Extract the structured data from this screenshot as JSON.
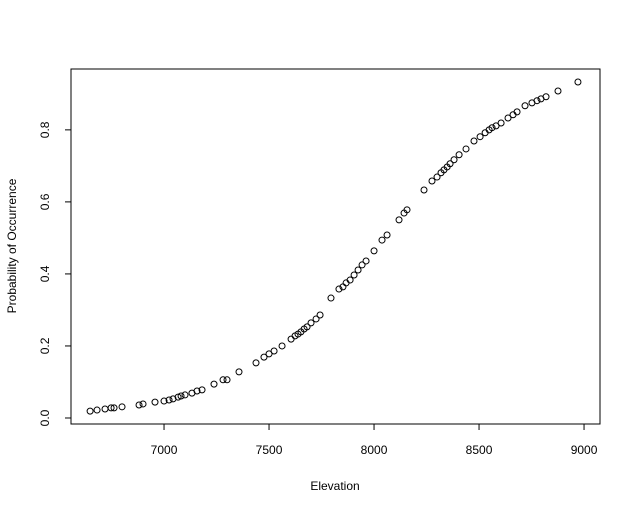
{
  "chart_data": {
    "type": "scatter",
    "x_label": "Elevation",
    "y_label": "Probability of Occurrence",
    "color": "#000000",
    "x": [
      6648,
      6681,
      6719,
      6748,
      6762,
      6800,
      6881,
      6900,
      6957,
      7000,
      7024,
      7043,
      7067,
      7081,
      7100,
      7133,
      7157,
      7181,
      7238,
      7281,
      7300,
      7357,
      7438,
      7476,
      7500,
      7524,
      7562,
      7605,
      7624,
      7638,
      7652,
      7667,
      7681,
      7700,
      7724,
      7743,
      7795,
      7833,
      7852,
      7867,
      7886,
      7905,
      7924,
      7943,
      7962,
      8000,
      8038,
      8062,
      8119,
      8143,
      8157,
      8238,
      8276,
      8300,
      8319,
      8333,
      8348,
      8362,
      8381,
      8405,
      8438,
      8476,
      8505,
      8529,
      8548,
      8562,
      8581,
      8605,
      8638,
      8662,
      8681,
      8719,
      8752,
      8776,
      8795,
      8819,
      8876,
      8971
    ],
    "values": [
      0.019,
      0.022,
      0.025,
      0.028,
      0.028,
      0.031,
      0.036,
      0.039,
      0.044,
      0.047,
      0.05,
      0.053,
      0.058,
      0.061,
      0.064,
      0.069,
      0.075,
      0.078,
      0.094,
      0.106,
      0.106,
      0.128,
      0.153,
      0.169,
      0.178,
      0.186,
      0.2,
      0.219,
      0.228,
      0.233,
      0.239,
      0.247,
      0.253,
      0.264,
      0.275,
      0.286,
      0.333,
      0.358,
      0.364,
      0.375,
      0.383,
      0.397,
      0.411,
      0.425,
      0.436,
      0.464,
      0.494,
      0.508,
      0.55,
      0.569,
      0.578,
      0.633,
      0.658,
      0.669,
      0.681,
      0.689,
      0.697,
      0.706,
      0.717,
      0.731,
      0.747,
      0.769,
      0.781,
      0.792,
      0.8,
      0.806,
      0.811,
      0.819,
      0.833,
      0.842,
      0.85,
      0.867,
      0.875,
      0.881,
      0.886,
      0.892,
      0.908,
      0.933
    ],
    "xlim": [
      6557,
      9076
    ],
    "xticks": [
      7000,
      7500,
      8000,
      8500,
      9000
    ],
    "ylim": [
      -0.0167,
      0.969
    ],
    "yticks": [
      {
        "value": 0,
        "label": "0.0"
      },
      0.2,
      0.4,
      0.6,
      0.8
    ]
  }
}
